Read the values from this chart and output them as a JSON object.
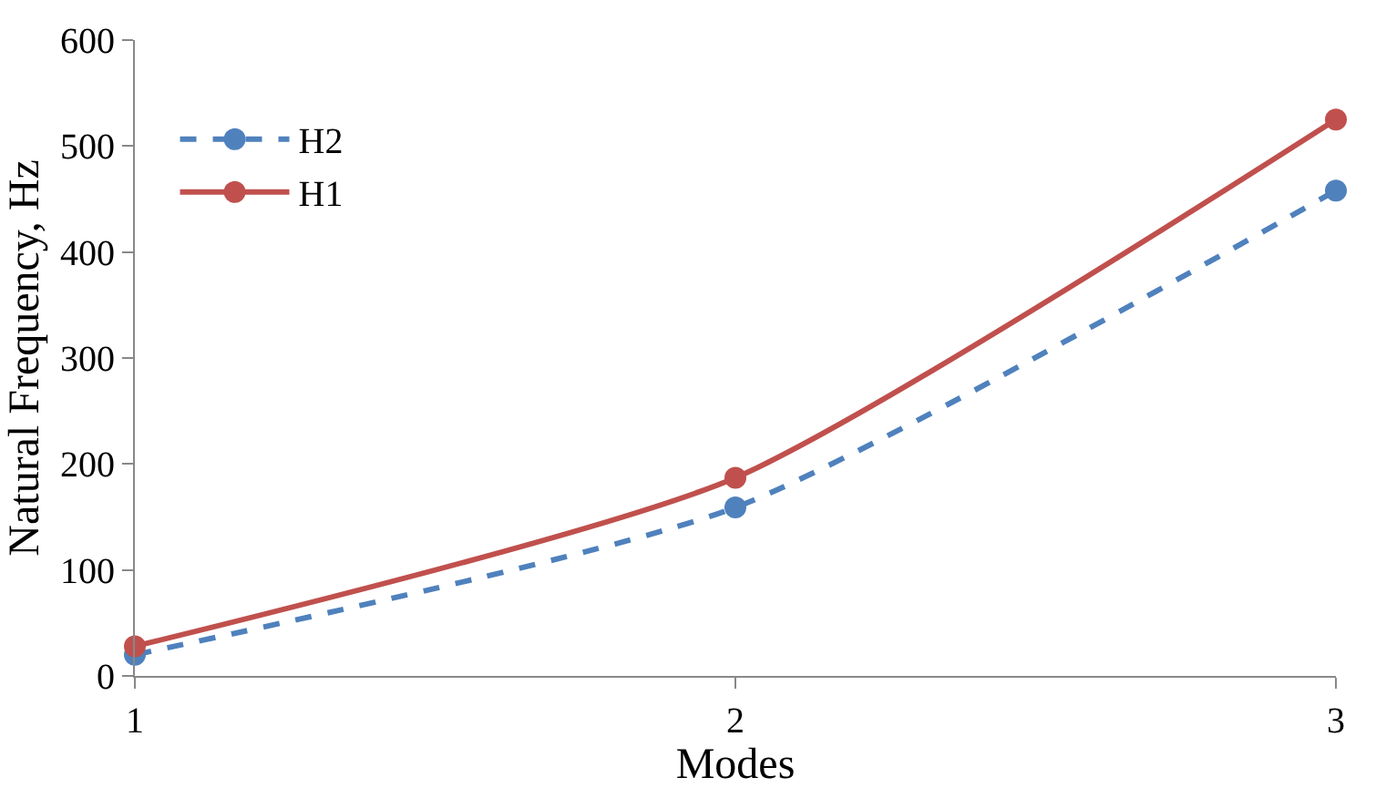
{
  "chart_data": {
    "type": "line",
    "xlabel": "Modes",
    "ylabel": "Natural Frequency, Hz",
    "x": [
      1,
      2,
      3
    ],
    "xlim": [
      1,
      3
    ],
    "xticks": [
      1,
      2,
      3
    ],
    "ylim": [
      0,
      600
    ],
    "yticks": [
      0,
      100,
      200,
      300,
      400,
      500,
      600
    ],
    "legend": "top left",
    "marker": "circle",
    "series": [
      {
        "name": "H2",
        "color": "#4f81bd",
        "line_style": "dashed",
        "values": [
          20,
          159,
          458
        ]
      },
      {
        "name": "H1",
        "color": "#c0504d",
        "line_style": "solid",
        "values": [
          28,
          187,
          525
        ]
      }
    ]
  }
}
